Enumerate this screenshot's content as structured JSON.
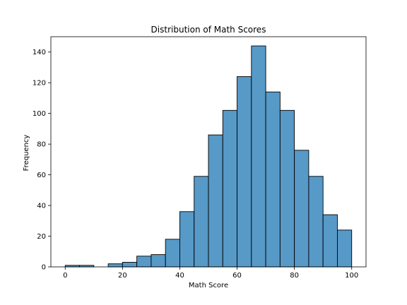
{
  "chart_data": {
    "type": "bar",
    "title": "Distribution of Math Scores",
    "xlabel": "Math Score",
    "ylabel": "Frequency",
    "xlim": [
      -5,
      105
    ],
    "ylim": [
      0,
      150
    ],
    "x_ticks": [
      0,
      20,
      40,
      60,
      80,
      100
    ],
    "y_ticks": [
      0,
      20,
      40,
      60,
      80,
      100,
      120,
      140
    ],
    "bin_edges": [
      0,
      5,
      10,
      15,
      20,
      25,
      30,
      35,
      40,
      45,
      50,
      55,
      60,
      65,
      70,
      75,
      80,
      85,
      90,
      95,
      100
    ],
    "values": [
      1,
      1,
      0,
      2,
      3,
      7,
      8,
      18,
      36,
      59,
      86,
      102,
      124,
      144,
      114,
      102,
      76,
      59,
      34,
      24
    ],
    "grid": false,
    "bar_color": "#5799c7",
    "edge_color": "#000000"
  }
}
